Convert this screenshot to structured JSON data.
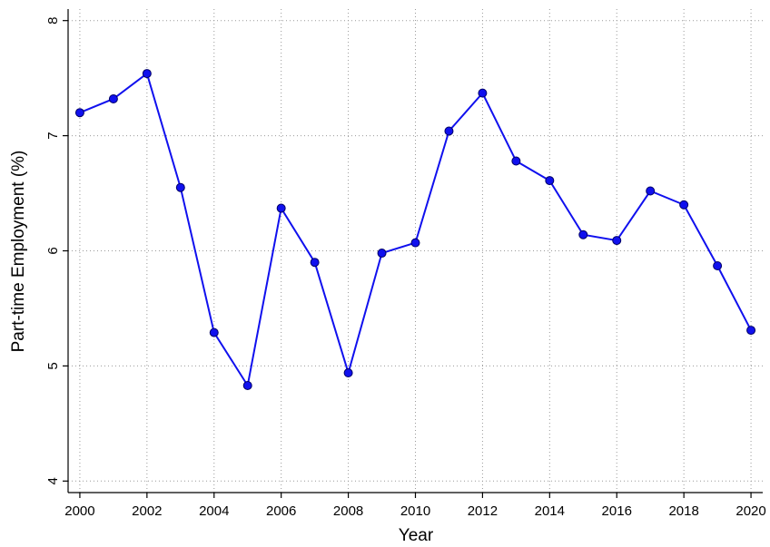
{
  "chart_data": {
    "type": "line",
    "x_label": "Year",
    "y_label": "Part-time Employment (%)",
    "x": [
      2000,
      2001,
      2002,
      2003,
      2004,
      2005,
      2006,
      2007,
      2008,
      2009,
      2010,
      2011,
      2012,
      2013,
      2014,
      2015,
      2016,
      2017,
      2018,
      2019,
      2020
    ],
    "series": [
      {
        "color": "#1010ee",
        "values": [
          7.2,
          7.32,
          7.54,
          6.55,
          5.29,
          4.83,
          6.37,
          5.9,
          4.94,
          5.98,
          6.07,
          7.04,
          7.37,
          6.78,
          6.61,
          6.14,
          6.09,
          6.52,
          6.4,
          5.87,
          5.31
        ]
      }
    ],
    "xlim": [
      1999.65,
      2020.35
    ],
    "xticks": [
      2000,
      2002,
      2004,
      2006,
      2008,
      2010,
      2012,
      2014,
      2016,
      2018,
      2020
    ],
    "ylim": [
      3.9,
      8.1
    ],
    "yticks": [
      4,
      5,
      6,
      7,
      8
    ],
    "grid": true
  }
}
